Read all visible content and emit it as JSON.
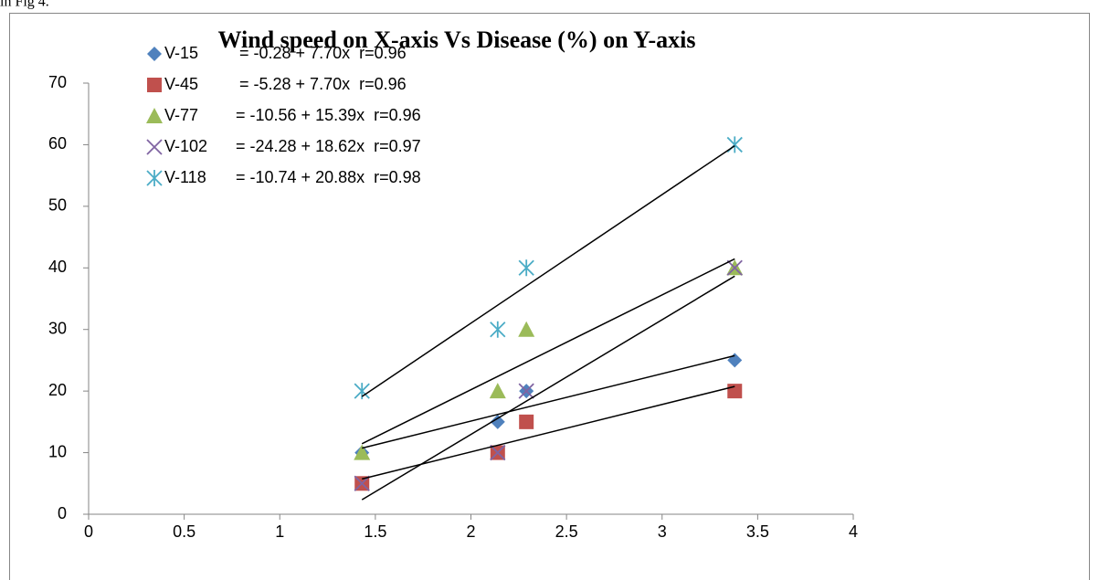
{
  "context_text": "in Fig 4.",
  "chart_data": {
    "type": "scatter",
    "title": "Wind speed on X-axis Vs Disease (%) on Y-axis",
    "x": [
      1.43,
      2.14,
      2.29,
      3.38
    ],
    "trend_x": [
      1.43,
      3.38
    ],
    "series": [
      {
        "name": "V-15",
        "equation": "= -0.28 + 7.70x  r=0.96",
        "color": "#4f81bd",
        "marker": "diamond",
        "values": [
          10,
          15,
          20,
          25
        ],
        "trend": [
          10.73,
          25.75
        ]
      },
      {
        "name": "V-45",
        "equation": "= -5.28 + 7.70x  r=0.96",
        "color": "#c0504d",
        "marker": "square",
        "values": [
          5,
          10,
          15,
          20
        ],
        "trend": [
          5.73,
          20.75
        ]
      },
      {
        "name": "V-77",
        "equation": "= -10.56 + 15.39x  r=0.96",
        "color": "#9bbb59",
        "marker": "triangle",
        "values": [
          10,
          20,
          30,
          40
        ],
        "trend": [
          11.45,
          41.46
        ]
      },
      {
        "name": "V-102",
        "equation": "= -24.28 + 18.62x  r=0.97",
        "color": "#8064a2",
        "marker": "x",
        "values": [
          5,
          10,
          20,
          40
        ],
        "trend": [
          2.35,
          38.66
        ]
      },
      {
        "name": "V-118",
        "equation": "= -10.74 + 20.88x  r=0.98",
        "color": "#4bacc6",
        "marker": "asterisk",
        "values": [
          20,
          30,
          40,
          60
        ],
        "trend": [
          19.12,
          59.83
        ]
      }
    ],
    "xlim": [
      0,
      4
    ],
    "xticks": [
      0,
      0.5,
      1,
      1.5,
      2,
      2.5,
      3,
      3.5,
      4
    ],
    "ylim": [
      0,
      70
    ],
    "yticks": [
      0,
      10,
      20,
      30,
      40,
      50,
      60,
      70
    ],
    "grid": false
  }
}
